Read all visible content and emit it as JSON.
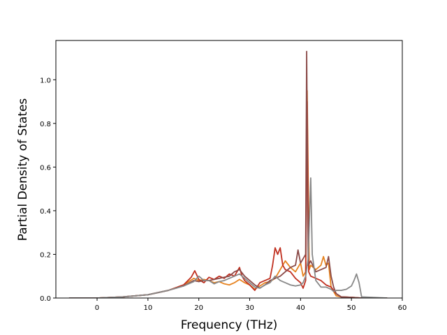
{
  "chart_data": {
    "type": "line",
    "title": "",
    "xlabel": "Frequency (THz)",
    "ylabel": "Partial Density of States",
    "xlim": [
      -8.1,
      60
    ],
    "ylim": [
      0,
      1.18
    ],
    "xticks": [
      0,
      10,
      20,
      30,
      40,
      50,
      60
    ],
    "yticks": [
      0.0,
      0.2,
      0.4,
      0.6,
      0.8,
      1.0
    ],
    "xtick_labels": [
      "0",
      "10",
      "20",
      "30",
      "40",
      "50",
      "60"
    ],
    "ytick_labels": [
      "0.0",
      "0.2",
      "0.4",
      "0.6",
      "0.8",
      "1.0"
    ],
    "grid": false,
    "legend": "none",
    "series": [
      {
        "color": "#e6821e",
        "x": [
          -5.5,
          0,
          5,
          10,
          14,
          17,
          19,
          20,
          21,
          22,
          23,
          24,
          25,
          26,
          27,
          28,
          29,
          30,
          31,
          32,
          33,
          34,
          35,
          36,
          37,
          38,
          39,
          40,
          40.5,
          41,
          41.3,
          41.7,
          42,
          43,
          44,
          44.5,
          45,
          45.5,
          46,
          47,
          48,
          50,
          52,
          57
        ],
        "y": [
          0,
          0,
          0.005,
          0.015,
          0.035,
          0.06,
          0.09,
          0.08,
          0.085,
          0.08,
          0.07,
          0.075,
          0.065,
          0.06,
          0.07,
          0.085,
          0.07,
          0.06,
          0.04,
          0.055,
          0.07,
          0.075,
          0.09,
          0.13,
          0.17,
          0.14,
          0.12,
          0.16,
          0.1,
          0.12,
          0.95,
          0.13,
          0.15,
          0.13,
          0.15,
          0.19,
          0.15,
          0.16,
          0.05,
          0.01,
          0.005,
          0.003,
          0,
          0
        ]
      },
      {
        "color": "#c03020",
        "x": [
          -5.5,
          0,
          5,
          10,
          14,
          17,
          18.5,
          19.2,
          20,
          21,
          22,
          23,
          24,
          25,
          26,
          27,
          28,
          28.5,
          29,
          30,
          31,
          32,
          33,
          34,
          34.5,
          35,
          35.5,
          36,
          36.5,
          37,
          38,
          39,
          40,
          40.5,
          41,
          41.3,
          41.6,
          42,
          43,
          44,
          45,
          46,
          47,
          48,
          50,
          52,
          57
        ],
        "y": [
          0,
          0,
          0.005,
          0.015,
          0.035,
          0.06,
          0.095,
          0.125,
          0.085,
          0.07,
          0.095,
          0.085,
          0.1,
          0.09,
          0.11,
          0.1,
          0.14,
          0.1,
          0.08,
          0.06,
          0.035,
          0.07,
          0.08,
          0.09,
          0.15,
          0.23,
          0.2,
          0.23,
          0.15,
          0.13,
          0.12,
          0.09,
          0.07,
          0.045,
          0.08,
          0.9,
          0.12,
          0.1,
          0.09,
          0.08,
          0.06,
          0.05,
          0.02,
          0.005,
          0.003,
          0,
          0
        ]
      },
      {
        "color": "#8a4a48",
        "x": [
          -5.5,
          0,
          5,
          10,
          14,
          17,
          19,
          20,
          21,
          22,
          23,
          24,
          25,
          26,
          27,
          28,
          29,
          30,
          31,
          32,
          33,
          34,
          35,
          36,
          37,
          38,
          39,
          39.5,
          40,
          40.5,
          41,
          41.2,
          41.5,
          42,
          43,
          44,
          45,
          45.5,
          46,
          46.5,
          47,
          48,
          50,
          52,
          57
        ],
        "y": [
          0,
          0,
          0.005,
          0.015,
          0.035,
          0.055,
          0.08,
          0.075,
          0.08,
          0.08,
          0.085,
          0.09,
          0.095,
          0.1,
          0.12,
          0.13,
          0.1,
          0.08,
          0.06,
          0.045,
          0.06,
          0.08,
          0.09,
          0.1,
          0.12,
          0.14,
          0.15,
          0.22,
          0.16,
          0.18,
          0.2,
          1.13,
          0.15,
          0.17,
          0.12,
          0.13,
          0.14,
          0.19,
          0.1,
          0.05,
          0.02,
          0.005,
          0.003,
          0,
          0
        ]
      },
      {
        "color": "#888888",
        "x": [
          -5.5,
          0,
          5,
          10,
          14,
          17,
          19,
          20,
          21,
          22,
          23,
          24,
          25,
          26,
          27,
          28,
          29,
          30,
          31,
          32,
          33,
          34,
          35,
          36,
          37,
          38,
          39,
          40,
          40.5,
          41,
          41.5,
          42,
          42.3,
          43,
          44,
          45,
          46,
          46.5,
          47,
          48,
          49,
          50,
          50.5,
          51,
          51.5,
          52,
          57
        ],
        "y": [
          0,
          0,
          0.005,
          0.015,
          0.035,
          0.055,
          0.075,
          0.1,
          0.08,
          0.08,
          0.065,
          0.075,
          0.08,
          0.09,
          0.1,
          0.11,
          0.09,
          0.07,
          0.05,
          0.045,
          0.06,
          0.07,
          0.1,
          0.08,
          0.07,
          0.06,
          0.055,
          0.06,
          0.07,
          0.1,
          0.18,
          0.55,
          0.2,
          0.08,
          0.05,
          0.05,
          0.04,
          0.03,
          0.035,
          0.035,
          0.04,
          0.055,
          0.08,
          0.11,
          0.07,
          0.005,
          0
        ]
      }
    ]
  }
}
